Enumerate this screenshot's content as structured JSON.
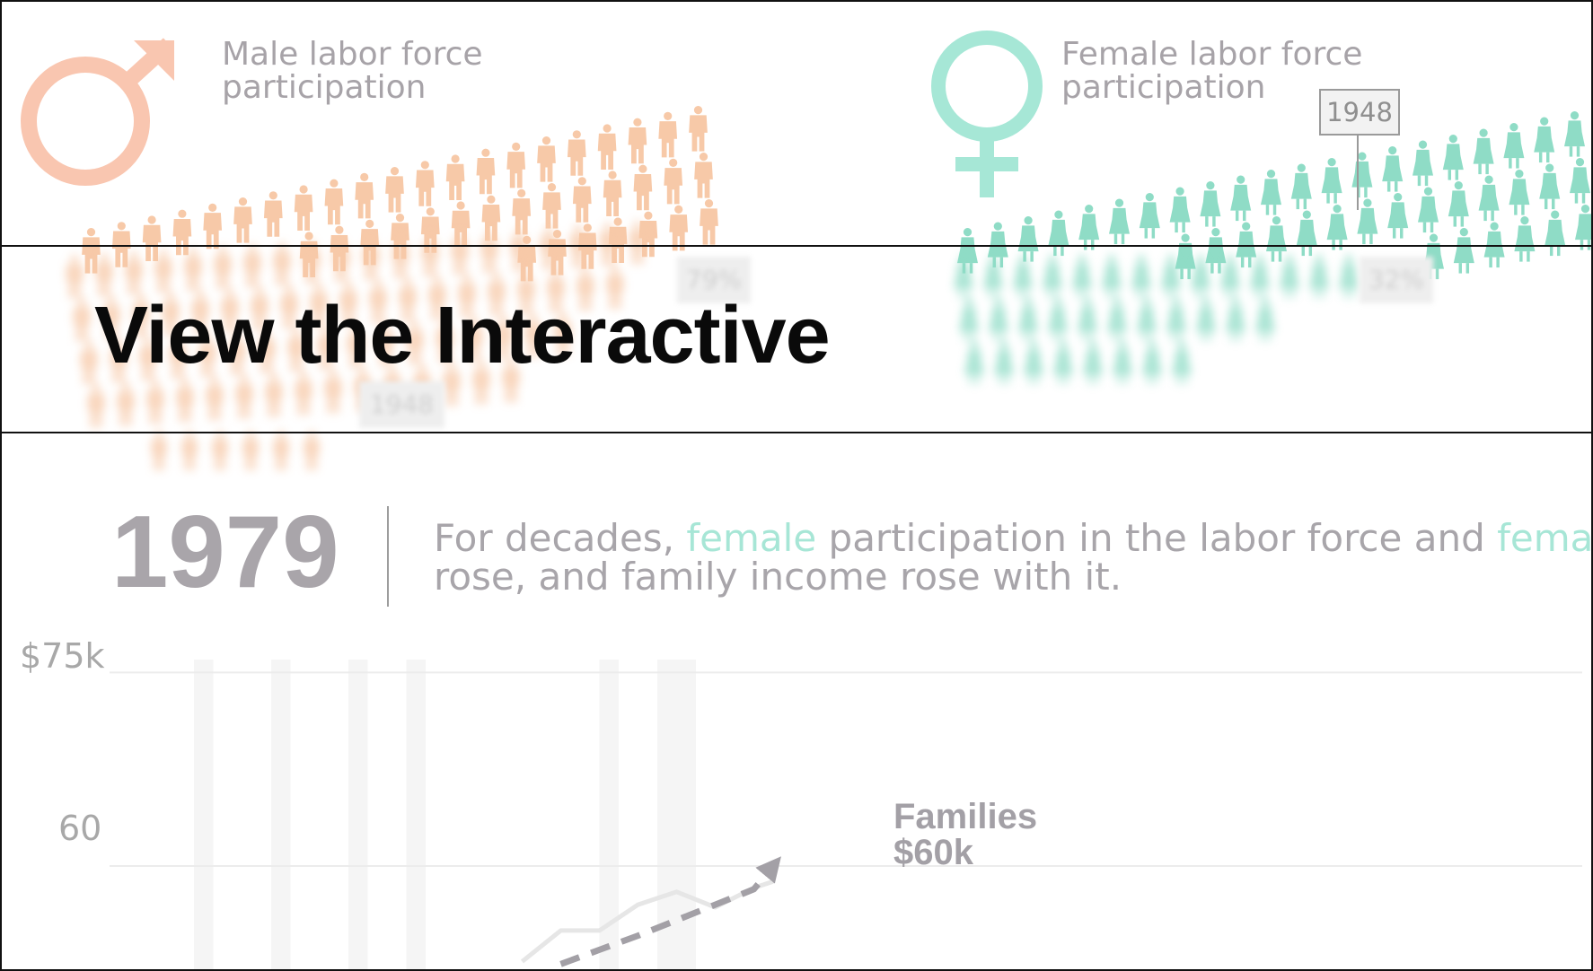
{
  "male": {
    "title": "Male labor force\nparticipation",
    "symbol_color": "#f9c6b0",
    "figure_color": "#f7c9a8",
    "blurred_pct_label": "79%",
    "blurred_year_label": "1948"
  },
  "female": {
    "title": "Female labor force\nparticipation",
    "symbol_color": "#a6e7d6",
    "figure_color": "#8fdcc6",
    "year_tag": "1948",
    "blurred_pct_label": "32%"
  },
  "cta": {
    "label": "View the Interactive"
  },
  "scene": {
    "year": "1979",
    "caption_parts": [
      {
        "text": "For decades, ",
        "highlight": false
      },
      {
        "text": "female",
        "highlight": true
      },
      {
        "text": " participation in the labor force and ",
        "highlight": false
      },
      {
        "text": "female",
        "highlight": true
      }
    ],
    "caption_line2": "rose, and family income rose with it.",
    "highlight_color": "#a7e6d6"
  },
  "chart_data": {
    "type": "line",
    "title": "",
    "xlabel": "",
    "ylabel": "",
    "y_tick_labels": [
      "$75k",
      "60"
    ],
    "y_ticks": [
      75,
      60
    ],
    "ylim": [
      52,
      76
    ],
    "x": [
      1948,
      1950,
      1952,
      1954,
      1956,
      1958,
      1960,
      1962,
      1964,
      1966,
      1968,
      1970,
      1972,
      1974,
      1976,
      1978,
      1979
    ],
    "series": [
      {
        "name": "Families",
        "style": "solid",
        "color": "#e6e6e6",
        "values": [
          null,
          null,
          null,
          null,
          null,
          null,
          null,
          null,
          null,
          52.6,
          55.0,
          55.0,
          57.0,
          58.0,
          56.8,
          58.3,
          58.8
        ]
      },
      {
        "name": "Families",
        "style": "dashed",
        "color": "#a3a0a6",
        "values": [
          null,
          null,
          null,
          null,
          null,
          null,
          null,
          null,
          null,
          null,
          52.4,
          53.5,
          54.6,
          55.8,
          57.0,
          58.2,
          60.0
        ]
      }
    ],
    "end_label": {
      "name": "Families",
      "value": "$60k"
    },
    "recession_bands": [
      [
        1949,
        1950
      ],
      [
        1953,
        1954
      ],
      [
        1957,
        1958
      ],
      [
        1960,
        1961
      ],
      [
        1970,
        1971
      ],
      [
        1973,
        1975
      ]
    ]
  }
}
